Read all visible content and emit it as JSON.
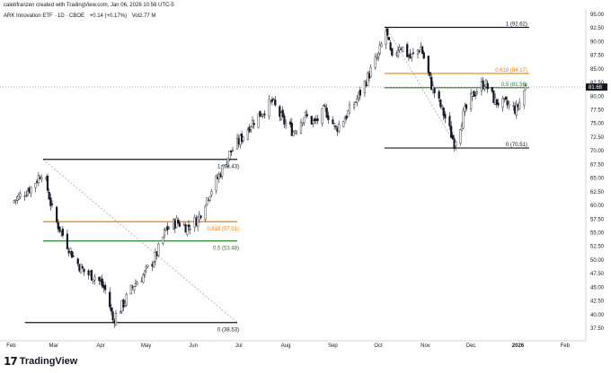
{
  "header": {
    "creator_line": "calebfranzen created with TradingView.com, Jan 06, 2026 10:58 UTC-5",
    "symbol": "ARK Innovation ETF · 1D · CBOE",
    "change": "+0.14 (+0.17%)",
    "volume": "Vol2.77 M"
  },
  "branding": {
    "logo_glyph": "17",
    "name": "TradingView"
  },
  "chart_data": {
    "type": "candlestick",
    "title": "",
    "xlabel": "",
    "ylabel": "",
    "x_ticks": [
      "Feb",
      "Mar",
      "Apr",
      "May",
      "Jun",
      "Jul",
      "Aug",
      "Sep",
      "Oct",
      "Nov",
      "Dec",
      "2026",
      "Feb"
    ],
    "ylim": [
      37.5,
      95.0
    ],
    "y_ticks": [
      "95.00",
      "92.50",
      "90.00",
      "87.50",
      "85.00",
      "82.50",
      "80.00",
      "77.50",
      "75.00",
      "72.50",
      "70.00",
      "67.50",
      "65.00",
      "62.50",
      "60.00",
      "57.50",
      "55.00",
      "52.50",
      "50.00",
      "47.50",
      "45.00",
      "42.50",
      "40.00",
      "37.50"
    ],
    "last_price": "81.68",
    "last_price_color": "#131722",
    "grid": false,
    "legend": "none",
    "colors": {
      "up": "#ffffff",
      "down": "#131722",
      "outline": "#131722"
    },
    "series": [
      {
        "date": "2025-02-01",
        "close": 60.5
      },
      {
        "date": "2025-02-08",
        "close": 62.0
      },
      {
        "date": "2025-02-15",
        "close": 63.5
      },
      {
        "date": "2025-02-22",
        "close": 66.5
      },
      {
        "date": "2025-03-01",
        "close": 58.0
      },
      {
        "date": "2025-03-08",
        "close": 54.0
      },
      {
        "date": "2025-03-15",
        "close": 50.0
      },
      {
        "date": "2025-03-22",
        "close": 47.5
      },
      {
        "date": "2025-03-29",
        "close": 47.0
      },
      {
        "date": "2025-04-05",
        "close": 44.0
      },
      {
        "date": "2025-04-09",
        "close": 39.0
      },
      {
        "date": "2025-04-16",
        "close": 42.0
      },
      {
        "date": "2025-04-23",
        "close": 45.5
      },
      {
        "date": "2025-04-30",
        "close": 47.5
      },
      {
        "date": "2025-05-07",
        "close": 50.5
      },
      {
        "date": "2025-05-14",
        "close": 55.5
      },
      {
        "date": "2025-05-21",
        "close": 57.0
      },
      {
        "date": "2025-05-28",
        "close": 56.0
      },
      {
        "date": "2025-06-04",
        "close": 57.5
      },
      {
        "date": "2025-06-11",
        "close": 62.0
      },
      {
        "date": "2025-06-18",
        "close": 65.5
      },
      {
        "date": "2025-06-25",
        "close": 69.5
      },
      {
        "date": "2025-07-02",
        "close": 72.0
      },
      {
        "date": "2025-07-09",
        "close": 75.0
      },
      {
        "date": "2025-07-16",
        "close": 77.0
      },
      {
        "date": "2025-07-23",
        "close": 79.0
      },
      {
        "date": "2025-07-30",
        "close": 75.5
      },
      {
        "date": "2025-08-06",
        "close": 73.5
      },
      {
        "date": "2025-08-13",
        "close": 76.5
      },
      {
        "date": "2025-08-20",
        "close": 75.0
      },
      {
        "date": "2025-08-27",
        "close": 77.5
      },
      {
        "date": "2025-09-03",
        "close": 74.0
      },
      {
        "date": "2025-09-10",
        "close": 76.5
      },
      {
        "date": "2025-09-17",
        "close": 79.5
      },
      {
        "date": "2025-09-24",
        "close": 83.5
      },
      {
        "date": "2025-10-01",
        "close": 87.5
      },
      {
        "date": "2025-10-06",
        "close": 92.0
      },
      {
        "date": "2025-10-10",
        "close": 86.5
      },
      {
        "date": "2025-10-15",
        "close": 89.5
      },
      {
        "date": "2025-10-22",
        "close": 87.0
      },
      {
        "date": "2025-10-29",
        "close": 89.0
      },
      {
        "date": "2025-11-05",
        "close": 82.0
      },
      {
        "date": "2025-11-12",
        "close": 77.5
      },
      {
        "date": "2025-11-20",
        "close": 71.5
      },
      {
        "date": "2025-11-26",
        "close": 76.5
      },
      {
        "date": "2025-12-03",
        "close": 80.5
      },
      {
        "date": "2025-12-10",
        "close": 82.5
      },
      {
        "date": "2025-12-17",
        "close": 79.0
      },
      {
        "date": "2025-12-24",
        "close": 78.5
      },
      {
        "date": "2025-12-31",
        "close": 77.5
      },
      {
        "date": "2026-01-06",
        "close": 81.68
      }
    ],
    "fib_levels": [
      {
        "label": "0 (38.53)",
        "value": 38.53,
        "color": "#131722",
        "set": "first"
      },
      {
        "label": "0.5 (53.48)",
        "value": 53.48,
        "color": "#2e7d32",
        "set": "first"
      },
      {
        "label": "0.618 (57.01)",
        "value": 57.01,
        "color": "#f57c00",
        "set": "first"
      },
      {
        "label": "1 (68.43)",
        "value": 68.43,
        "color": "#131722",
        "set": "first"
      },
      {
        "label": "0 (70.51)",
        "value": 70.51,
        "color": "#131722",
        "set": "second"
      },
      {
        "label": "0.5 (81.56)",
        "value": 81.56,
        "color": "#2e7d32",
        "set": "second"
      },
      {
        "label": "0.618 (84.17)",
        "value": 84.17,
        "color": "#f57c00",
        "set": "second"
      },
      {
        "label": "1 (92.62)",
        "value": 92.62,
        "color": "#131722",
        "set": "second"
      }
    ],
    "trend_lines": [
      {
        "from": {
          "date": "2025-02-22",
          "value": 68.43
        },
        "to": {
          "date": "2025-06-30",
          "value": 38.53
        }
      },
      {
        "from": {
          "date": "2025-10-06",
          "value": 92.62
        },
        "to": {
          "date": "2025-11-22",
          "value": 70.51
        }
      }
    ]
  }
}
